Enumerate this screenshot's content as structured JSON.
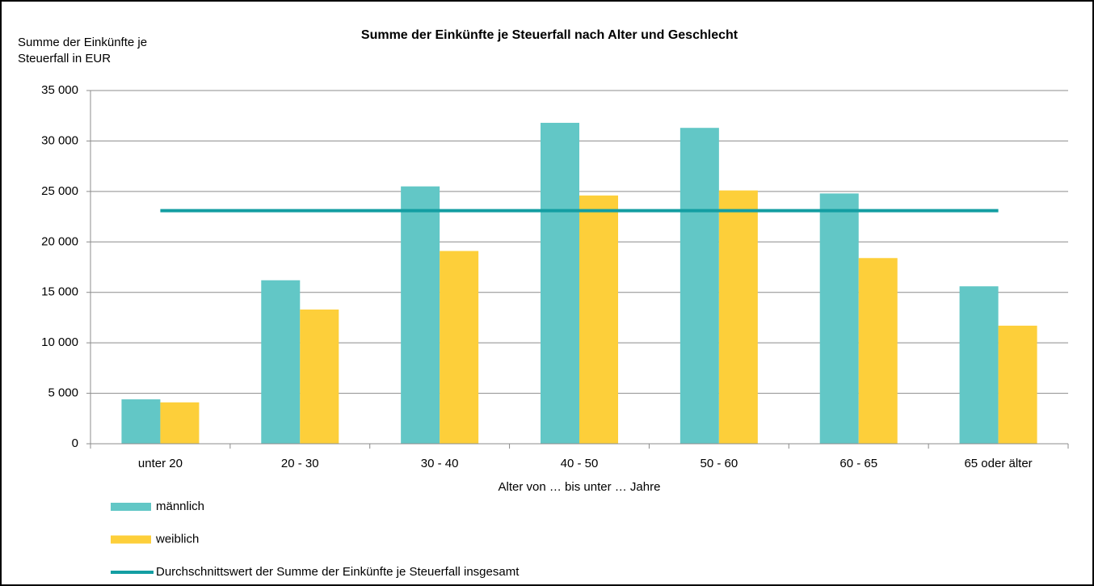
{
  "chart_data": {
    "type": "bar",
    "title": "Summe der Einkünfte je Steuerfall nach Alter und Geschlecht",
    "y_label": [
      "Summe der Einkünfte je",
      "Steuerfall in EUR"
    ],
    "x_label": "Alter von … bis unter … Jahre",
    "categories": [
      "unter 20",
      "20 - 30",
      "30 - 40",
      "40 - 50",
      "50 - 60",
      "60 - 65",
      "65 oder älter"
    ],
    "series": [
      {
        "name": "männlich",
        "type": "bar",
        "color": "#62c7c6",
        "values": [
          4400,
          16200,
          25500,
          31800,
          31300,
          24800,
          15600
        ]
      },
      {
        "name": "weiblich",
        "type": "bar",
        "color": "#fdcf3a",
        "values": [
          4100,
          13300,
          19100,
          24600,
          25100,
          18400,
          11700
        ]
      },
      {
        "name": "Durchschnittswert der Summe der Einkünfte je Steuerfall insgesamt",
        "type": "line",
        "color": "#139ea2",
        "values": [
          23100,
          23100,
          23100,
          23100,
          23100,
          23100,
          23100
        ]
      }
    ],
    "ylim": [
      0,
      35000
    ],
    "yticks": [
      0,
      {
        "value": 5000,
        "label": "5 000"
      },
      {
        "value": 10000,
        "label": "10 000"
      },
      {
        "value": 15000,
        "label": "15 000"
      },
      {
        "value": 20000,
        "label": "20 000"
      },
      {
        "value": 25000,
        "label": "25 000"
      },
      {
        "value": 30000,
        "label": "30 000"
      },
      {
        "value": 35000,
        "label": "35 000"
      }
    ],
    "grid": true
  }
}
